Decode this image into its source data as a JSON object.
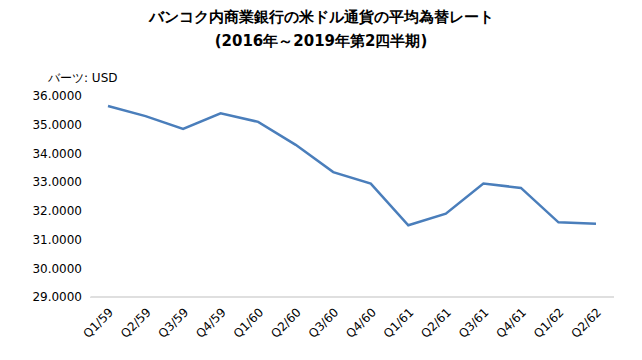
{
  "chart_data": {
    "type": "line",
    "title": "バンコク内商業銀行の米ドル通貨の平均為替レート",
    "subtitle": "(2016年～2019年第2四半期)",
    "y_label": "バーツ: USD",
    "categories": [
      "Q1/59",
      "Q2/59",
      "Q3/59",
      "Q4/59",
      "Q1/60",
      "Q2/60",
      "Q3/60",
      "Q4/60",
      "Q1/61",
      "Q2/61",
      "Q3/61",
      "Q4/61",
      "Q1/62",
      "Q2/62"
    ],
    "values": [
      35.65,
      35.3,
      34.85,
      35.4,
      35.1,
      34.3,
      33.35,
      32.95,
      31.5,
      31.9,
      32.95,
      32.8,
      31.6,
      31.55
    ],
    "color": "#4a7ebb",
    "marker": "none",
    "ylim": [
      29,
      36
    ],
    "yticks": [
      {
        "value": 29,
        "label": "29.0000"
      },
      {
        "value": 30,
        "label": "30.0000"
      },
      {
        "value": 31,
        "label": "31.0000"
      },
      {
        "value": 32,
        "label": "32.0000"
      },
      {
        "value": 33,
        "label": "33.0000"
      },
      {
        "value": 34,
        "label": "34.0000"
      },
      {
        "value": 35,
        "label": "35.0000"
      },
      {
        "value": 36,
        "label": "36.0000"
      }
    ],
    "grid": false
  }
}
